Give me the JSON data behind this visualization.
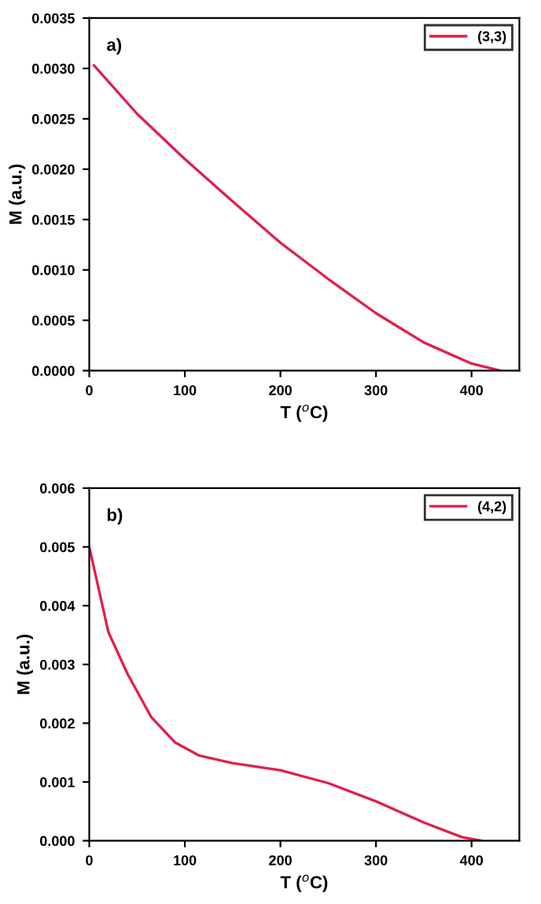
{
  "chart_data": [
    {
      "type": "line",
      "xlabel": "T ($^{o}$C)",
      "ylabel": "M (a.u.)",
      "annotations": [
        "a)"
      ],
      "legend": "top right",
      "xlim": [
        0,
        450
      ],
      "ylim": [
        0,
        0.0035
      ],
      "xticks": [
        0,
        100,
        200,
        300,
        400
      ],
      "yticks": [
        {
          "value": 0,
          "label": "0.0000"
        },
        {
          "value": 0.0005,
          "label": "0.0005"
        },
        {
          "value": 0.001,
          "label": "0.0010"
        },
        {
          "value": 0.0015,
          "label": "0.0015"
        },
        {
          "value": 0.002,
          "label": "0.0020"
        },
        {
          "value": 0.0025,
          "label": "0.0025"
        },
        {
          "value": 0.003,
          "label": "0.0030"
        },
        {
          "value": 0.0035,
          "label": "0.0035"
        }
      ],
      "series": [
        {
          "name": "(3,3)",
          "color": "#e0204a",
          "x": [
            5,
            50,
            100,
            150,
            200,
            250,
            300,
            350,
            400,
            430
          ],
          "values": [
            0.00303,
            0.00255,
            0.0021,
            0.00168,
            0.00127,
            0.00091,
            0.00057,
            0.00028,
            7e-05,
            0
          ]
        }
      ]
    },
    {
      "type": "line",
      "xlabel": "T ($^{o}$C)",
      "ylabel": "M (a.u.)",
      "annotations": [
        "b)"
      ],
      "legend": "top right",
      "xlim": [
        0,
        450
      ],
      "ylim": [
        0,
        0.006
      ],
      "xticks": [
        0,
        100,
        200,
        300,
        400
      ],
      "yticks": [
        {
          "value": 0,
          "label": "0.000"
        },
        {
          "value": 0.001,
          "label": "0.001"
        },
        {
          "value": 0.002,
          "label": "0.002"
        },
        {
          "value": 0.003,
          "label": "0.003"
        },
        {
          "value": 0.004,
          "label": "0.004"
        },
        {
          "value": 0.005,
          "label": "0.005"
        },
        {
          "value": 0.006,
          "label": "0.006"
        }
      ],
      "series": [
        {
          "name": "(4,2)",
          "color": "#e0204a",
          "x": [
            0,
            20,
            40,
            65,
            90,
            115,
            150,
            200,
            250,
            300,
            350,
            390,
            410
          ],
          "values": [
            0.005,
            0.00355,
            0.00284,
            0.0021,
            0.00167,
            0.00145,
            0.00132,
            0.0012,
            0.00098,
            0.00067,
            0.00031,
            6e-05,
            0
          ]
        }
      ]
    }
  ]
}
